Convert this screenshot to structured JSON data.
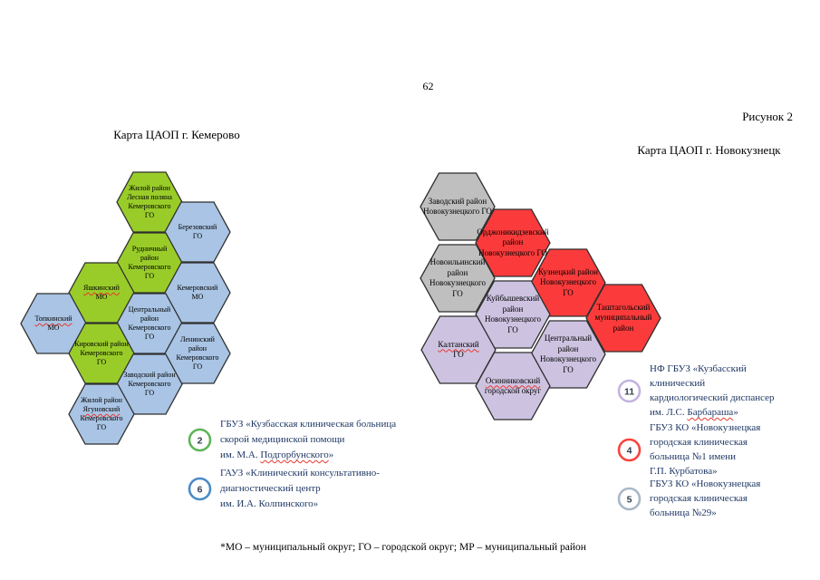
{
  "page": {
    "number": "62",
    "figure_label": "Рисунок 2",
    "footnote": "*МО – муниципальный округ; ГО – городской округ; МР – муниципальный район"
  },
  "palette": {
    "green": "#99CC29",
    "blue": "#A9C4E4",
    "gray": "#BFBFBF",
    "red": "#FB3B3B",
    "purple": "#CDC3E1",
    "hex_border": "#2F2F2F",
    "legend_text": "#1F3864"
  },
  "kemerovo": {
    "title": "Карта ЦАОП г. Кемерово",
    "hexes": [
      {
        "color": "green",
        "lines": [
          "Жилой район",
          "Лесная поляна",
          "Кемеровского",
          "ГО"
        ]
      },
      {
        "color": "blue",
        "lines": [
          "Березовский",
          "ГО"
        ]
      },
      {
        "color": "green",
        "lines": [
          "Рудничный",
          "район",
          "Кемеровского",
          "ГО"
        ]
      },
      {
        "color": "green",
        "lines": [
          {
            "text": "Яшкинский",
            "wavy": true
          },
          "МО"
        ]
      },
      {
        "color": "blue",
        "lines": [
          "Кемеровский",
          "МО"
        ]
      },
      {
        "color": "blue",
        "lines": [
          {
            "text": "Топкинский",
            "wavy": true
          },
          "МО"
        ]
      },
      {
        "color": "blue",
        "lines": [
          "Центральный",
          "район",
          "Кемеровского",
          "ГО"
        ]
      },
      {
        "color": "green",
        "lines": [
          "Кировский район",
          "Кемеровского",
          "ГО"
        ]
      },
      {
        "color": "blue",
        "lines": [
          "Ленинский",
          "район",
          "Кемеровского",
          "ГО"
        ]
      },
      {
        "color": "blue",
        "lines": [
          "Заводский район",
          "Кемеровского",
          "ГО"
        ]
      },
      {
        "color": "blue",
        "lines": [
          "Жилой район",
          {
            "text": "Ягуновский",
            "wavy": true
          },
          "Кемеровского",
          "ГО"
        ]
      }
    ]
  },
  "novokuznetsk": {
    "title": "Карта ЦАОП г. Новокузнецк",
    "hexes": [
      {
        "color": "gray",
        "lines": [
          "Заводский район",
          "Новокузнецкого ГО"
        ]
      },
      {
        "color": "red",
        "lines": [
          "Орджоникидзевский",
          "район",
          "Новокузнецкого ГО"
        ]
      },
      {
        "color": "gray",
        "lines": [
          "Новоильинский",
          "район",
          "Новокузнецкого",
          "ГО"
        ]
      },
      {
        "color": "red",
        "lines": [
          "Кузнецкий район",
          "Новокузнецкого",
          "ГО"
        ]
      },
      {
        "color": "purple",
        "lines": [
          "Куйбышевский",
          "район",
          "Новокузнецкого",
          "ГО"
        ]
      },
      {
        "color": "red",
        "lines": [
          "Таштагольский",
          "муниципальный",
          "район"
        ]
      },
      {
        "color": "purple",
        "lines": [
          {
            "text": "Калтанский",
            "wavy": true
          },
          "ГО"
        ]
      },
      {
        "color": "purple",
        "lines": [
          "Центральный",
          "район",
          "Новокузнецкого",
          "ГО"
        ]
      },
      {
        "color": "purple",
        "lines": [
          {
            "text": "Осинниковский",
            "wavy": true
          },
          "городской округ"
        ]
      }
    ]
  },
  "legend_kemerovo": {
    "items": [
      {
        "number": "2",
        "ring_color": "#5EB457",
        "lines": [
          "ГБУЗ «Кузбасская клиническая больница",
          "скорой медицинской помощи",
          {
            "parts": [
              {
                "text": "им. М.А. "
              },
              {
                "text": "Подгорбунского",
                "wavy": true
              },
              {
                "text": "»"
              }
            ]
          }
        ]
      },
      {
        "number": "6",
        "ring_color": "#4A8BC6",
        "lines": [
          "ГАУЗ «Клинический консультативно-",
          "диагностический центр",
          "им. И.А. Колпинского»"
        ]
      }
    ]
  },
  "legend_novokuznetsk": {
    "items": [
      {
        "number": "11",
        "ring_color": "#C3B3DE",
        "lines": [
          "НФ ГБУЗ «Кузбасский",
          "клинический",
          "кардиологический диспансер",
          {
            "parts": [
              {
                "text": "им. Л.С. "
              },
              {
                "text": "Барбараша",
                "wavy": true
              },
              {
                "text": "»"
              }
            ]
          }
        ]
      },
      {
        "number": "4",
        "ring_color": "#F9423E",
        "lines": [
          "ГБУЗ КО «Новокузнецкая",
          "городская клиническая",
          "больница №1 имени",
          "Г.П. Курбатова»"
        ]
      },
      {
        "number": "5",
        "ring_color": "#A8B7C6",
        "lines": [
          "ГБУЗ КО «Новокузнецкая",
          "городская клиническая",
          "больница №29»"
        ]
      }
    ]
  }
}
